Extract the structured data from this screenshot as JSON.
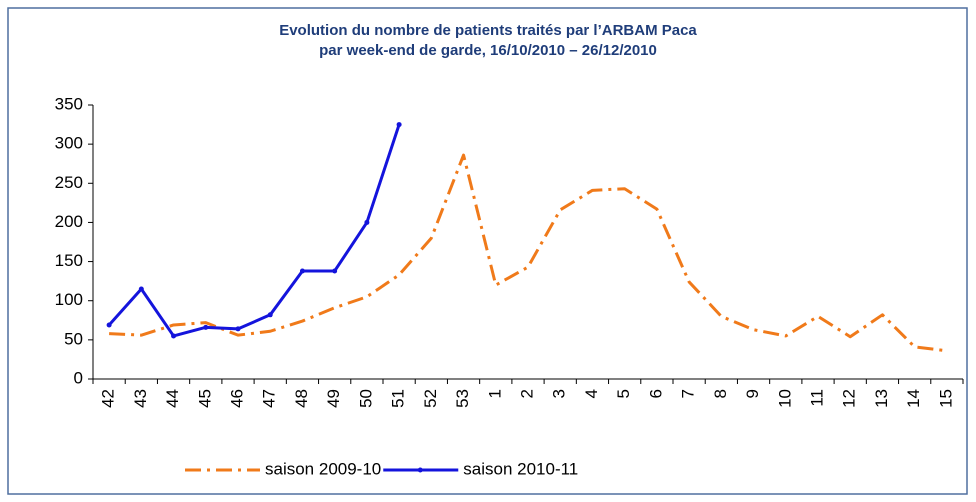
{
  "chart_data": {
    "type": "line",
    "title": [
      "Evolution du nombre de patients traités par l’ARBAM Paca",
      "par week-end de garde, 16/10/2010 – 26/12/2010"
    ],
    "categories": [
      "42",
      "43",
      "44",
      "45",
      "46",
      "47",
      "48",
      "49",
      "50",
      "51",
      "52",
      "53",
      "1",
      "2",
      "3",
      "4",
      "5",
      "6",
      "7",
      "8",
      "9",
      "10",
      "11",
      "12",
      "13",
      "14",
      "15"
    ],
    "series": [
      {
        "name": "saison 2009-10",
        "color": "#f07a1a",
        "dash": true,
        "values": [
          58,
          56,
          69,
          72,
          56,
          61,
          74,
          91,
          105,
          133,
          180,
          286,
          120,
          143,
          216,
          241,
          243,
          217,
          124,
          80,
          63,
          55,
          80,
          54,
          82,
          41,
          36
        ]
      },
      {
        "name": "saison 2010-11",
        "color": "#1414dc",
        "dash": false,
        "values": [
          69,
          115,
          55,
          66,
          64,
          82,
          138,
          138,
          200,
          325,
          null,
          null,
          null,
          null,
          null,
          null,
          null,
          null,
          null,
          null,
          null,
          null,
          null,
          null,
          null,
          null,
          null
        ]
      }
    ],
    "ylim": [
      0,
      350
    ],
    "yticks": [
      0,
      50,
      100,
      150,
      200,
      250,
      300,
      350
    ],
    "grid": false,
    "legend": "bottom"
  }
}
